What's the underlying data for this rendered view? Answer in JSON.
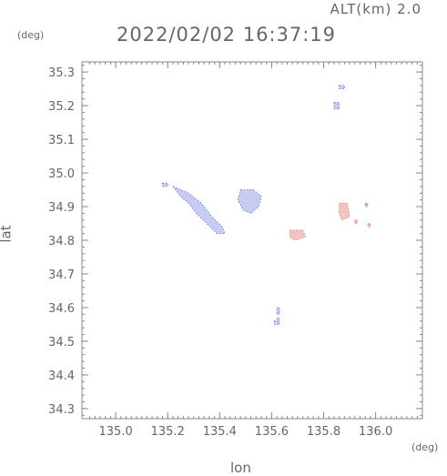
{
  "header": {
    "altitude_label": "ALT(km)",
    "altitude_value": "2.0",
    "timestamp": "2022/02/02 16:37:19"
  },
  "chart_data": {
    "type": "heatmap",
    "title": "2022/02/02 16:37:19",
    "xlabel": "lon",
    "ylabel": "lat",
    "x_unit": "(deg)",
    "y_unit": "(deg)",
    "xlim": [
      134.87,
      136.18
    ],
    "ylim": [
      34.27,
      35.33
    ],
    "x_ticks": [
      "135.0",
      "135.2",
      "135.4",
      "135.6",
      "135.8",
      "136.0"
    ],
    "y_ticks": [
      "34.3",
      "34.4",
      "34.5",
      "34.6",
      "34.7",
      "34.8",
      "34.9",
      "35.0",
      "35.1",
      "35.2",
      "35.3"
    ],
    "grid": false,
    "colors": {
      "approaching": "#c8ccf2",
      "approaching_edge": "#5b62d6",
      "receding": "#f6c3c3",
      "receding_edge": "#d46a6a"
    },
    "regions": [
      {
        "name": "main-blue-band",
        "color": "approaching",
        "points": [
          [
            135.22,
            34.96
          ],
          [
            135.28,
            34.94
          ],
          [
            135.33,
            34.91
          ],
          [
            135.37,
            34.87
          ],
          [
            135.41,
            34.84
          ],
          [
            135.42,
            34.82
          ],
          [
            135.39,
            34.82
          ],
          [
            135.35,
            34.85
          ],
          [
            135.31,
            34.88
          ],
          [
            135.28,
            34.91
          ],
          [
            135.25,
            34.93
          ]
        ]
      },
      {
        "name": "blue-patch-north",
        "color": "approaching",
        "points": [
          [
            135.48,
            34.95
          ],
          [
            135.53,
            34.95
          ],
          [
            135.56,
            34.93
          ],
          [
            135.55,
            34.9
          ],
          [
            135.52,
            34.88
          ],
          [
            135.49,
            34.89
          ],
          [
            135.47,
            34.92
          ]
        ]
      },
      {
        "name": "blue-speck-west",
        "color": "approaching",
        "points": [
          [
            135.18,
            34.97
          ],
          [
            135.2,
            34.97
          ],
          [
            135.2,
            34.96
          ],
          [
            135.18,
            34.96
          ]
        ]
      },
      {
        "name": "blue-speck-1",
        "color": "approaching",
        "points": [
          [
            135.84,
            35.21
          ],
          [
            135.86,
            35.21
          ],
          [
            135.86,
            35.19
          ],
          [
            135.84,
            35.19
          ]
        ]
      },
      {
        "name": "blue-speck-2",
        "color": "approaching",
        "points": [
          [
            135.86,
            35.26
          ],
          [
            135.88,
            35.26
          ],
          [
            135.88,
            35.25
          ],
          [
            135.86,
            35.25
          ]
        ]
      },
      {
        "name": "blue-speck-3",
        "color": "approaching",
        "points": [
          [
            135.61,
            34.56
          ],
          [
            135.63,
            34.56
          ],
          [
            135.63,
            34.55
          ],
          [
            135.61,
            34.55
          ]
        ]
      },
      {
        "name": "blue-speck-4",
        "color": "approaching",
        "points": [
          [
            135.62,
            34.6
          ],
          [
            135.63,
            34.6
          ],
          [
            135.63,
            34.58
          ],
          [
            135.62,
            34.58
          ]
        ]
      },
      {
        "name": "blue-speck-5",
        "color": "approaching",
        "points": [
          [
            135.96,
            34.91
          ],
          [
            135.97,
            34.91
          ],
          [
            135.97,
            34.9
          ],
          [
            135.96,
            34.9
          ]
        ]
      },
      {
        "name": "red-patch-center",
        "color": "receding",
        "points": [
          [
            135.67,
            34.83
          ],
          [
            135.72,
            34.83
          ],
          [
            135.73,
            34.81
          ],
          [
            135.69,
            34.8
          ],
          [
            135.67,
            34.81
          ]
        ]
      },
      {
        "name": "red-patch-east",
        "color": "receding",
        "points": [
          [
            135.86,
            34.91
          ],
          [
            135.89,
            34.91
          ],
          [
            135.9,
            34.87
          ],
          [
            135.87,
            34.86
          ],
          [
            135.86,
            34.88
          ]
        ]
      },
      {
        "name": "red-speck-1",
        "color": "receding",
        "points": [
          [
            135.97,
            34.85
          ],
          [
            135.98,
            34.85
          ],
          [
            135.98,
            34.84
          ],
          [
            135.97,
            34.84
          ]
        ]
      },
      {
        "name": "red-speck-2",
        "color": "receding",
        "points": [
          [
            135.92,
            34.86
          ],
          [
            135.93,
            34.86
          ],
          [
            135.93,
            34.85
          ],
          [
            135.92,
            34.85
          ]
        ]
      },
      {
        "name": "red-speck-3",
        "color": "receding",
        "points": [
          [
            135.62,
            34.57
          ],
          [
            135.63,
            34.57
          ],
          [
            135.63,
            34.56
          ],
          [
            135.62,
            34.56
          ]
        ]
      }
    ]
  }
}
